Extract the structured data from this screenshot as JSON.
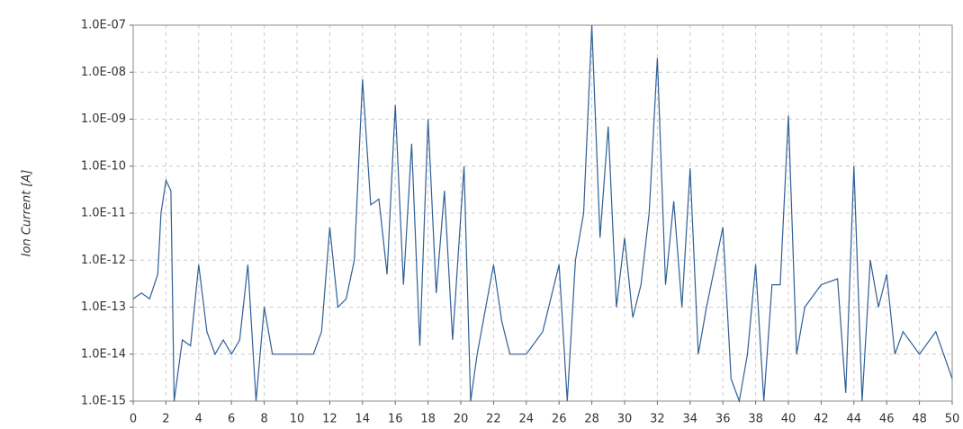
{
  "chart_data": {
    "type": "line",
    "y_label": "Ion Current [A]",
    "log_y": true,
    "grid": true,
    "x": [
      0,
      0.5,
      1,
      1.5,
      1.7,
      2,
      2.3,
      2.5,
      3,
      3.5,
      4,
      4.5,
      5,
      5.5,
      6,
      6.5,
      7,
      7.5,
      8,
      8.5,
      9,
      10,
      11,
      11.5,
      12,
      12.5,
      13,
      13.5,
      14,
      14.5,
      15,
      15.5,
      16,
      16.5,
      17,
      17.5,
      18,
      18.5,
      19,
      19.5,
      20.2,
      20.6,
      21,
      22,
      22.5,
      23,
      24,
      25,
      26,
      26.5,
      27,
      27.5,
      28,
      28.5,
      29,
      29.5,
      30,
      30.5,
      31,
      31.5,
      32,
      32.5,
      33,
      33.5,
      34,
      34.5,
      35,
      36,
      36.5,
      37,
      37.5,
      38,
      38.5,
      39,
      39.5,
      40,
      40.5,
      41,
      42,
      43,
      43.5,
      44,
      44.5,
      45,
      45.5,
      46,
      46.5,
      47,
      48,
      49,
      50
    ],
    "series": [
      {
        "name": "Ion Current",
        "color": "#2f5f96",
        "values": [
          1.5e-13,
          2e-13,
          1.5e-13,
          5e-13,
          1e-11,
          5e-11,
          3e-11,
          1e-15,
          2e-14,
          1.5e-14,
          8e-13,
          3e-14,
          1e-14,
          2e-14,
          1e-14,
          2e-14,
          8e-13,
          1e-15,
          1e-13,
          1e-14,
          1e-14,
          1e-14,
          1e-14,
          3e-14,
          5e-12,
          1e-13,
          1.5e-13,
          1e-12,
          7e-09,
          1.5e-11,
          2e-11,
          5e-13,
          2e-09,
          3e-13,
          3e-10,
          1.5e-14,
          1e-09,
          2e-13,
          3e-11,
          2e-14,
          1e-10,
          1e-15,
          1e-14,
          8e-13,
          5e-14,
          1e-14,
          1e-14,
          3e-14,
          8e-13,
          1e-15,
          1e-12,
          1e-11,
          1e-07,
          3e-12,
          7e-10,
          1e-13,
          3e-12,
          6e-14,
          3e-13,
          1e-11,
          2e-08,
          3e-13,
          1.8e-11,
          1e-13,
          9e-11,
          1e-14,
          1e-13,
          5e-12,
          3e-15,
          1e-15,
          1e-14,
          8e-13,
          1e-15,
          3e-13,
          3e-13,
          1.2e-09,
          1e-14,
          1e-13,
          3e-13,
          4e-13,
          1.5e-15,
          1e-10,
          1e-15,
          1e-12,
          1e-13,
          5e-13,
          1e-14,
          3e-14,
          1e-14,
          3e-14,
          3e-15
        ]
      }
    ],
    "xlim": [
      0,
      50
    ],
    "xticks": [
      0,
      2,
      4,
      6,
      8,
      10,
      12,
      14,
      16,
      18,
      20,
      22,
      24,
      26,
      28,
      30,
      32,
      34,
      36,
      38,
      40,
      42,
      44,
      46,
      48,
      50
    ],
    "ylim": [
      1e-15,
      1e-07
    ],
    "yticks": [
      {
        "value": 1e-15,
        "label": "1.0E-15"
      },
      {
        "value": 1e-14,
        "label": "1.0E-14"
      },
      {
        "value": 1e-13,
        "label": "1.0E-13"
      },
      {
        "value": 1e-12,
        "label": "1.0E-12"
      },
      {
        "value": 1e-11,
        "label": "1.0E-11"
      },
      {
        "value": 1e-10,
        "label": "1.0E-10"
      },
      {
        "value": 1e-09,
        "label": "1.0E-09"
      },
      {
        "value": 1e-08,
        "label": "1.0E-08"
      },
      {
        "value": 1e-07,
        "label": "1.0E-07"
      }
    ]
  }
}
